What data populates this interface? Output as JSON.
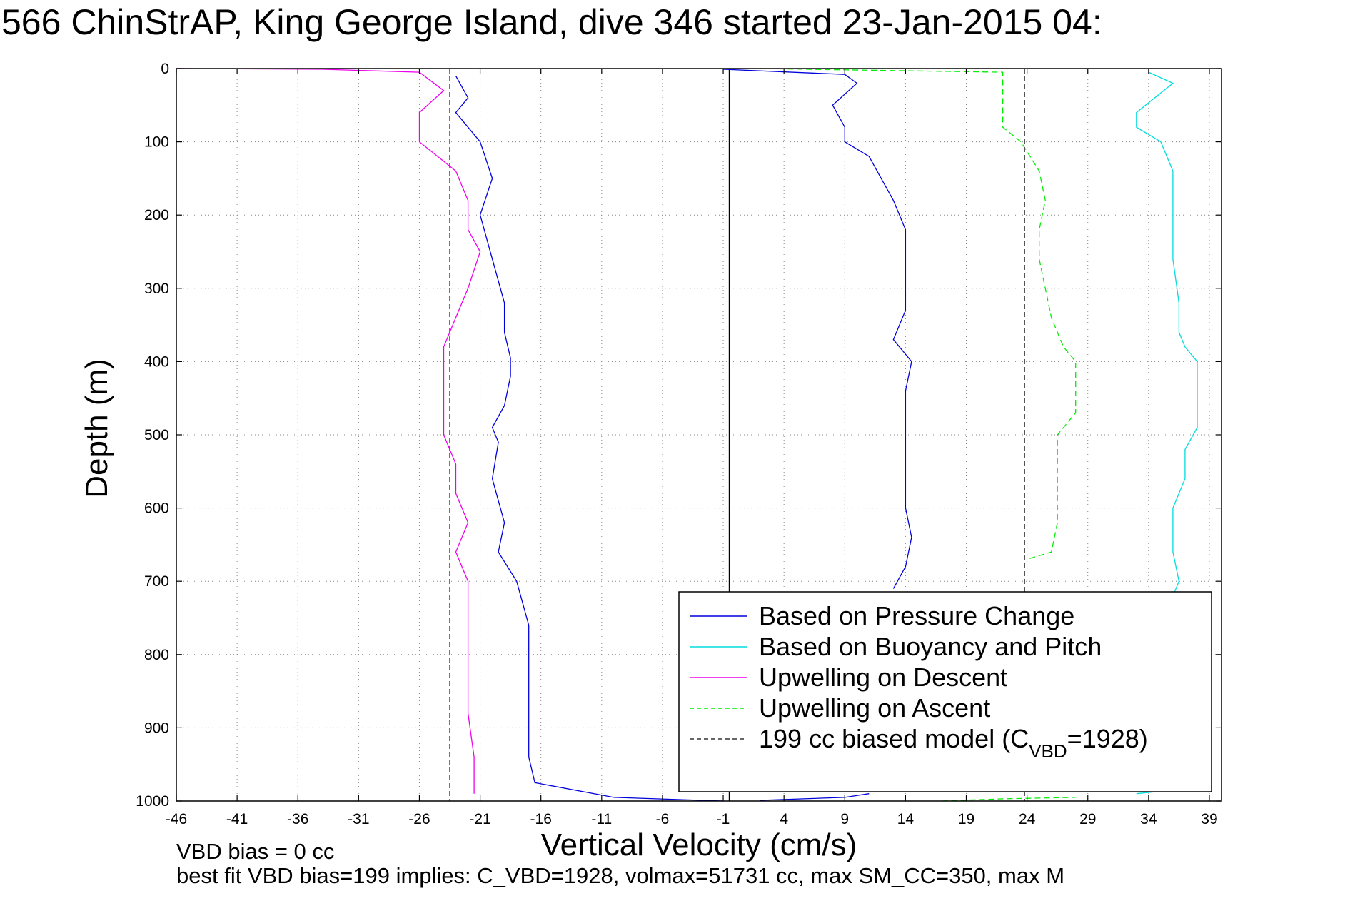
{
  "chart_data": {
    "type": "line",
    "title": "566 ChinStrAP, King George Island, dive 346 started 23-Jan-2015 04:",
    "xlabel": "Vertical Velocity (cm/s)",
    "ylabel": "Depth (m)",
    "xlim": [
      -46,
      40
    ],
    "ylim": [
      1000,
      0
    ],
    "x_ticks": [
      "-46",
      "-41",
      "-36",
      "-31",
      "-26",
      "-21",
      "-16",
      "-11",
      "-6",
      "-1",
      "4",
      "9",
      "14",
      "19",
      "24",
      "29",
      "34",
      "39"
    ],
    "y_ticks": [
      "0",
      "100",
      "200",
      "300",
      "400",
      "500",
      "600",
      "700",
      "800",
      "900",
      "1000"
    ],
    "grid": true,
    "legend_position": "bottom-right",
    "zero_line_x": -0.5,
    "annotations": [
      "VBD bias = 0 cc",
      "best fit VBD bias=199 implies: C_VBD=1928, volmax=51731 cc, max SM_CC=350, max M"
    ],
    "series": [
      {
        "name": "Based on Pressure Change",
        "color": "#0000dd",
        "style": "solid",
        "points": [
          [
            -23,
            10
          ],
          [
            -22,
            40
          ],
          [
            -23,
            60
          ],
          [
            -21,
            100
          ],
          [
            -20,
            150
          ],
          [
            -21,
            200
          ],
          [
            -20,
            260
          ],
          [
            -19,
            320
          ],
          [
            -19,
            360
          ],
          [
            -18.5,
            395
          ],
          [
            -18.5,
            420
          ],
          [
            -19,
            460
          ],
          [
            -20,
            490
          ],
          [
            -19.5,
            510
          ],
          [
            -20,
            560
          ],
          [
            -19,
            620
          ],
          [
            -19.5,
            660
          ],
          [
            -18,
            700
          ],
          [
            -17,
            760
          ],
          [
            -17,
            820
          ],
          [
            -17,
            880
          ],
          [
            -17,
            940
          ],
          [
            -16.5,
            975
          ],
          [
            -10,
            995
          ],
          [
            -1,
            1000
          ]
        ]
      },
      {
        "name": "Based on Pressure Change",
        "color": "#0000dd",
        "style": "solid",
        "points": [
          [
            -1,
            1
          ],
          [
            9,
            8
          ],
          [
            10,
            20
          ],
          [
            8,
            50
          ],
          [
            9,
            80
          ],
          [
            9,
            100
          ],
          [
            11,
            120
          ],
          [
            12,
            150
          ],
          [
            13,
            180
          ],
          [
            14,
            220
          ],
          [
            14,
            280
          ],
          [
            14,
            330
          ],
          [
            13,
            370
          ],
          [
            14.5,
            400
          ],
          [
            14,
            440
          ],
          [
            14,
            480
          ],
          [
            14,
            520
          ],
          [
            14,
            560
          ],
          [
            14,
            600
          ],
          [
            14.5,
            640
          ],
          [
            14,
            680
          ],
          [
            13,
            710
          ]
        ]
      },
      {
        "name": "Based on Pressure Change",
        "color": "#0000dd",
        "style": "solid",
        "points": [
          [
            2,
            999
          ],
          [
            9,
            995
          ],
          [
            11,
            990
          ]
        ]
      },
      {
        "name": "Based on Buoyancy and Pitch",
        "color": "#00dddd",
        "style": "solid",
        "points": [
          [
            34,
            5
          ],
          [
            36,
            20
          ],
          [
            33,
            60
          ],
          [
            33,
            80
          ],
          [
            35,
            100
          ],
          [
            36,
            140
          ],
          [
            36,
            180
          ],
          [
            36,
            220
          ],
          [
            36,
            260
          ],
          [
            36.5,
            320
          ],
          [
            36.5,
            360
          ],
          [
            37,
            380
          ],
          [
            38,
            400
          ],
          [
            38,
            440
          ],
          [
            38,
            460
          ],
          [
            38,
            490
          ],
          [
            37,
            520
          ],
          [
            37,
            560
          ],
          [
            36,
            600
          ],
          [
            36,
            640
          ],
          [
            36,
            660
          ],
          [
            36.5,
            700
          ],
          [
            36,
            720
          ]
        ]
      },
      {
        "name": "Based on Buoyancy and Pitch",
        "color": "#00dddd",
        "style": "solid",
        "points": [
          [
            33,
            990
          ],
          [
            36,
            985
          ],
          [
            38,
            980
          ]
        ]
      },
      {
        "name": "Upwelling on Descent",
        "color": "#ee00ee",
        "style": "solid",
        "points": [
          [
            -46,
            0
          ],
          [
            -34,
            1
          ],
          [
            -26,
            5
          ],
          [
            -24,
            30
          ],
          [
            -26,
            60
          ],
          [
            -26,
            100
          ],
          [
            -23,
            140
          ],
          [
            -22,
            180
          ],
          [
            -22,
            220
          ],
          [
            -21,
            250
          ],
          [
            -22,
            300
          ],
          [
            -23,
            340
          ],
          [
            -24,
            380
          ],
          [
            -24,
            420
          ],
          [
            -24,
            460
          ],
          [
            -24,
            480
          ],
          [
            -24,
            500
          ],
          [
            -23,
            540
          ],
          [
            -23,
            580
          ],
          [
            -22,
            620
          ],
          [
            -23,
            660
          ],
          [
            -22,
            700
          ],
          [
            -22,
            760
          ],
          [
            -22,
            820
          ],
          [
            -22,
            880
          ],
          [
            -21.5,
            940
          ],
          [
            -21.5,
            990
          ]
        ]
      },
      {
        "name": "Upwelling on Ascent",
        "color": "#00ee00",
        "style": "dashed",
        "points": [
          [
            2,
            0
          ],
          [
            22,
            5
          ],
          [
            22,
            30
          ],
          [
            22,
            60
          ],
          [
            22,
            80
          ],
          [
            23.5,
            100
          ],
          [
            25,
            140
          ],
          [
            25.5,
            180
          ],
          [
            25,
            220
          ],
          [
            25,
            260
          ],
          [
            25.5,
            300
          ],
          [
            26,
            340
          ],
          [
            27,
            380
          ],
          [
            28,
            400
          ],
          [
            28,
            440
          ],
          [
            28,
            470
          ],
          [
            26.5,
            500
          ],
          [
            26.5,
            540
          ],
          [
            26.5,
            580
          ],
          [
            26.5,
            620
          ],
          [
            26,
            660
          ],
          [
            24,
            670
          ]
        ]
      },
      {
        "name": "Upwelling on Ascent",
        "color": "#00ee00",
        "style": "dashed",
        "points": [
          [
            17,
            1000
          ],
          [
            22,
            997
          ],
          [
            28,
            995
          ]
        ]
      },
      {
        "name": "199 cc biased model (C",
        "color": "#555555",
        "style": "dashed",
        "points": [
          [
            -23.5,
            0
          ],
          [
            -23.5,
            1000
          ]
        ]
      },
      {
        "name": "199 cc biased model (C",
        "color": "#555555",
        "style": "dashed",
        "points": [
          [
            23.8,
            0
          ],
          [
            23.8,
            1000
          ]
        ]
      }
    ]
  },
  "legend": {
    "entries": [
      {
        "label": "Based on Pressure Change",
        "color": "#0000dd",
        "style": "solid"
      },
      {
        "label": "Based on Buoyancy and Pitch",
        "color": "#00dddd",
        "style": "solid"
      },
      {
        "label": "Upwelling on Descent",
        "color": "#ee00ee",
        "style": "solid"
      },
      {
        "label": "Upwelling on Ascent",
        "color": "#00ee00",
        "style": "dashed"
      },
      {
        "label": "199 cc biased model (C",
        "sub": "VBD",
        "suffix": "=1928)",
        "color": "#333333",
        "style": "dashed"
      }
    ]
  }
}
